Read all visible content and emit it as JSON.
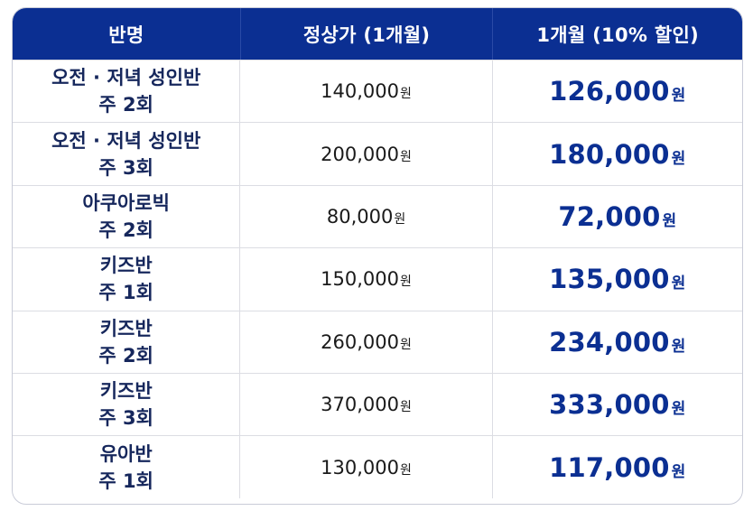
{
  "header": {
    "col_class": "반명",
    "col_regular": "정상가 (1개월)",
    "col_discount": "1개월 (10% 할인)"
  },
  "currency_unit": "원",
  "rows": [
    {
      "name_line1": "오전 · 저녁 성인반",
      "name_line2": "주 2회",
      "regular": "140,000",
      "discount": "126,000"
    },
    {
      "name_line1": "오전 · 저녁 성인반",
      "name_line2": "주 3회",
      "regular": "200,000",
      "discount": "180,000"
    },
    {
      "name_line1": "아쿠아로빅",
      "name_line2": "주 2회",
      "regular": "80,000",
      "discount": "72,000"
    },
    {
      "name_line1": "키즈반",
      "name_line2": "주 1회",
      "regular": "150,000",
      "discount": "135,000"
    },
    {
      "name_line1": "키즈반",
      "name_line2": "주 2회",
      "regular": "260,000",
      "discount": "234,000"
    },
    {
      "name_line1": "키즈반",
      "name_line2": "주 3회",
      "regular": "370,000",
      "discount": "333,000"
    },
    {
      "name_line1": "유아반",
      "name_line2": "주 1회",
      "regular": "130,000",
      "discount": "117,000"
    }
  ],
  "colors": {
    "header_bg": "#0b2f92",
    "header_text": "#ffffff",
    "discount_text": "#0b2f92",
    "class_text": "#16275c"
  }
}
